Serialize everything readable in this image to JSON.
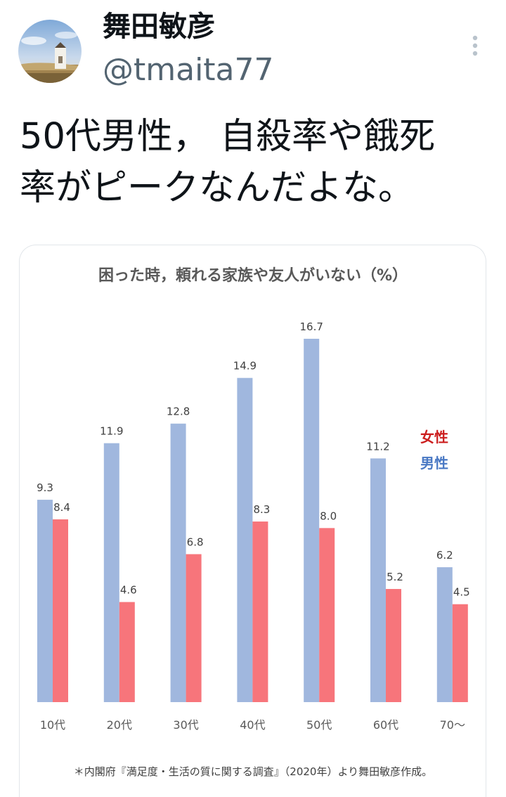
{
  "tweet": {
    "display_name": "舞田敏彦",
    "handle": "@tmaita77",
    "text": "50代男性， 自殺率や餓死\n率がピークなんだよな。",
    "more_icon": "vertical-ellipsis-icon",
    "avatar_icon": "landscape-photo-avatar"
  },
  "chart_data": {
    "type": "bar",
    "title": "困った時，頼れる家族や友人がいない（%）",
    "categories": [
      "10代",
      "20代",
      "30代",
      "40代",
      "50代",
      "60代",
      "70～"
    ],
    "series": [
      {
        "name": "男性",
        "color": "#a0b7de",
        "values": [
          9.3,
          11.9,
          12.8,
          14.9,
          16.7,
          11.2,
          6.2
        ]
      },
      {
        "name": "女性",
        "color": "#f7757b",
        "values": [
          8.4,
          4.6,
          6.8,
          8.3,
          8.0,
          5.2,
          4.5
        ]
      }
    ],
    "value_labels": {
      "男性": [
        "9.3",
        "11.9",
        "12.8",
        "14.9",
        "16.7",
        "11.2",
        "6.2"
      ],
      "女性": [
        "8.4",
        "4.6",
        "6.8",
        "8.3",
        "8.0",
        "5.2",
        "4.5"
      ]
    },
    "legend": [
      {
        "label": "女性",
        "color": "#cc1f1f"
      },
      {
        "label": "男性",
        "color": "#4a79c4"
      }
    ],
    "legend_position": "right",
    "ylim": [
      0,
      16.7
    ],
    "grid": false,
    "footnote": "＊内閣府『満足度・生活の質に関する調査』（2020年）より舞田敏彦作成。"
  }
}
